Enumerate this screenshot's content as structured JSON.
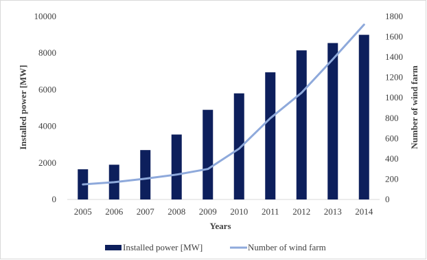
{
  "chart_data": {
    "type": "bar+line",
    "categories": [
      "2005",
      "2006",
      "2007",
      "2008",
      "2009",
      "2010",
      "2011",
      "2012",
      "2013",
      "2014"
    ],
    "series": [
      {
        "name": "Installed power [MW]",
        "type": "bar",
        "axis": "left",
        "color": "#0d1f5c",
        "values": [
          1650,
          1900,
          2700,
          3550,
          4900,
          5800,
          6950,
          8150,
          8550,
          9000
        ]
      },
      {
        "name": "Number of wind farm",
        "type": "line",
        "axis": "right",
        "color": "#8ea9db",
        "values": [
          148,
          170,
          205,
          245,
          300,
          500,
          800,
          1050,
          1380,
          1720
        ]
      }
    ],
    "xlabel": "Years",
    "ylabel_left": "Installed power [MW]",
    "ylabel_right": "Number of wind  farm",
    "ylim_left": [
      0,
      10000
    ],
    "ylim_right": [
      0,
      1800
    ],
    "yticks_left": [
      "0",
      "2000",
      "4000",
      "6000",
      "8000",
      "10000"
    ],
    "yticks_right": [
      "0",
      "200",
      "400",
      "600",
      "800",
      "1000",
      "1200",
      "1400",
      "1600",
      "1800"
    ],
    "grid": false,
    "legend_position": "bottom"
  }
}
